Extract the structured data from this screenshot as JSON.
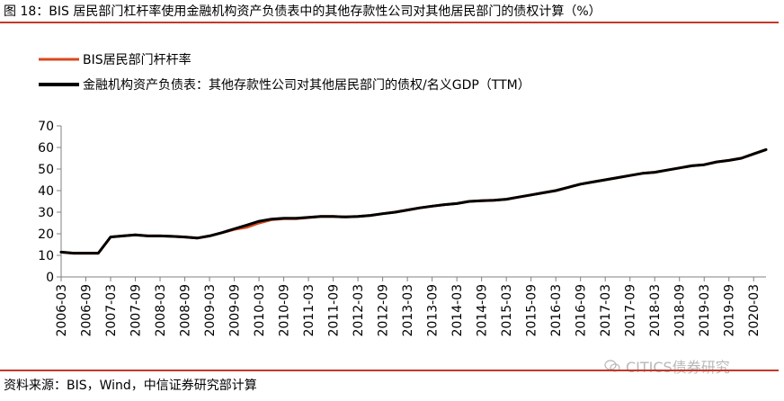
{
  "title": "图 18：BIS 居民部门杠杆率使用金融机构资产负债表中的其他存款性公司对其他居民部门的债权计算（%）",
  "source": "资料来源：BIS，Wind，中信证券研究部计算",
  "watermark": "CITICS债券研究",
  "watermark_icon": "wechat-icon",
  "colors": {
    "accent": "#c0392b",
    "series1": "#d9481c",
    "series2": "#000000",
    "axis": "#808080"
  },
  "chart_data": {
    "type": "line",
    "legend_position": "top-left",
    "grid": false,
    "xlabel": "",
    "ylabel": "",
    "ylim": [
      0,
      70
    ],
    "yticks": [
      0,
      10,
      20,
      30,
      40,
      50,
      60,
      70
    ],
    "x_tick_labels": [
      "2006-03",
      "2006-09",
      "2007-03",
      "2007-09",
      "2008-03",
      "2008-09",
      "2009-03",
      "2009-09",
      "2010-03",
      "2010-09",
      "2011-03",
      "2011-09",
      "2012-03",
      "2012-09",
      "2013-03",
      "2013-09",
      "2014-03",
      "2014-09",
      "2015-03",
      "2015-09",
      "2016-03",
      "2016-09",
      "2017-03",
      "2017-09",
      "2018-03",
      "2018-09",
      "2019-03",
      "2019-09",
      "2020-03"
    ],
    "x": [
      "2006-03",
      "2006-06",
      "2006-09",
      "2006-12",
      "2007-03",
      "2007-06",
      "2007-09",
      "2007-12",
      "2008-03",
      "2008-06",
      "2008-09",
      "2008-12",
      "2009-03",
      "2009-06",
      "2009-09",
      "2009-12",
      "2010-03",
      "2010-06",
      "2010-09",
      "2010-12",
      "2011-03",
      "2011-06",
      "2011-09",
      "2011-12",
      "2012-03",
      "2012-06",
      "2012-09",
      "2012-12",
      "2013-03",
      "2013-06",
      "2013-09",
      "2013-12",
      "2014-03",
      "2014-06",
      "2014-09",
      "2014-12",
      "2015-03",
      "2015-06",
      "2015-09",
      "2015-12",
      "2016-03",
      "2016-06",
      "2016-09",
      "2016-12",
      "2017-03",
      "2017-06",
      "2017-09",
      "2017-12",
      "2018-03",
      "2018-06",
      "2018-09",
      "2018-12",
      "2019-03",
      "2019-06",
      "2019-09",
      "2019-12",
      "2020-03",
      "2020-06"
    ],
    "series": [
      {
        "name": "BIS居民部门杆杆率",
        "values": [
          11.5,
          11,
          11,
          11,
          18.5,
          19,
          19.5,
          19,
          19,
          18.8,
          18.5,
          18,
          19,
          20.5,
          22,
          23,
          25,
          26.5,
          27,
          27,
          27.5,
          28,
          28,
          27.8,
          28,
          28.5,
          29.3,
          30,
          31,
          32,
          32.8,
          33.5,
          34,
          35,
          35.3,
          35.5,
          36,
          37,
          38,
          39,
          40,
          41.5,
          43,
          44,
          45,
          46,
          47,
          48,
          48.5,
          49.5,
          50.5,
          51.5,
          52,
          53.3,
          54,
          55,
          57,
          59
        ]
      },
      {
        "name": "金融机构资产负债表：其他存款性公司对其他居民部门的债权/名义GDP（TTM）",
        "values": [
          11.5,
          11,
          11,
          11,
          18.5,
          19,
          19.5,
          19,
          19,
          18.8,
          18.5,
          18,
          19,
          20.5,
          22.3,
          24,
          25.8,
          26.8,
          27.2,
          27.2,
          27.6,
          28,
          28,
          27.8,
          28,
          28.5,
          29.3,
          30,
          31,
          32,
          32.8,
          33.5,
          34,
          35,
          35.3,
          35.5,
          36,
          37,
          38,
          39,
          40,
          41.5,
          43,
          44,
          45,
          46,
          47,
          48,
          48.5,
          49.5,
          50.5,
          51.5,
          52,
          53.3,
          54,
          55,
          57,
          59
        ]
      }
    ]
  }
}
